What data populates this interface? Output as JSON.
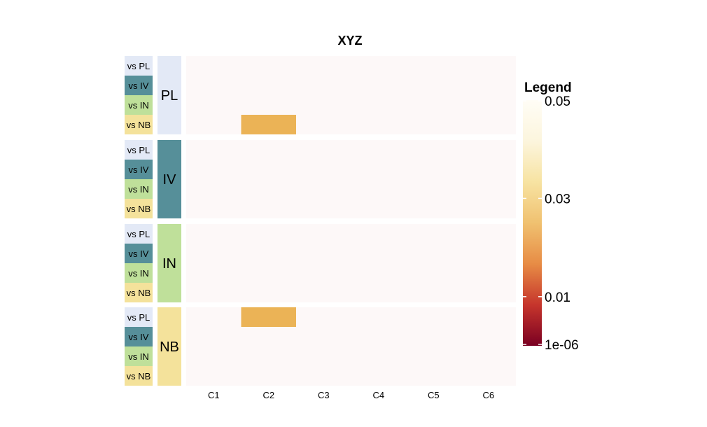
{
  "chart_data": {
    "type": "heatmap",
    "title": "XYZ",
    "columns": [
      "C1",
      "C2",
      "C3",
      "C4",
      "C5",
      "C6"
    ],
    "groups": [
      {
        "label": "PL",
        "color": "#e3e9f6",
        "rows": [
          "vs PL",
          "vs IV",
          "vs IN",
          "vs NB"
        ]
      },
      {
        "label": "IV",
        "color": "#568f99",
        "rows": [
          "vs PL",
          "vs IV",
          "vs IN",
          "vs NB"
        ]
      },
      {
        "label": "IN",
        "color": "#bfe09a",
        "rows": [
          "vs PL",
          "vs IV",
          "vs IN",
          "vs NB"
        ]
      },
      {
        "label": "NB",
        "color": "#f4e29b",
        "rows": [
          "vs PL",
          "vs IV",
          "vs IN",
          "vs NB"
        ]
      }
    ],
    "row_label_colors": {
      "vs PL": "#e3e9f6",
      "vs IV": "#568f99",
      "vs IN": "#bfe09a",
      "vs NB": "#f4e29b"
    },
    "background_color": "#fdf8f8",
    "cells": [
      {
        "group": "PL",
        "row": "vs NB",
        "column": "C2",
        "value": 0.01,
        "color": "#ebb356"
      },
      {
        "group": "NB",
        "row": "vs PL",
        "column": "C2",
        "value": 0.01,
        "color": "#ebb356"
      }
    ],
    "legend": {
      "title": "Legend",
      "placement": "right",
      "ticks": [
        {
          "label": "0.05",
          "value": 0.05
        },
        {
          "label": "0.03",
          "value": 0.03
        },
        {
          "label": "0.01",
          "value": 0.01
        },
        {
          "label": "1e-06",
          "value": 1e-06
        }
      ],
      "gradient": [
        "#7a0022",
        "#c6352c",
        "#e78c45",
        "#f0c170",
        "#f7e3a2",
        "#fcf5dd",
        "#fffdf6"
      ]
    }
  }
}
